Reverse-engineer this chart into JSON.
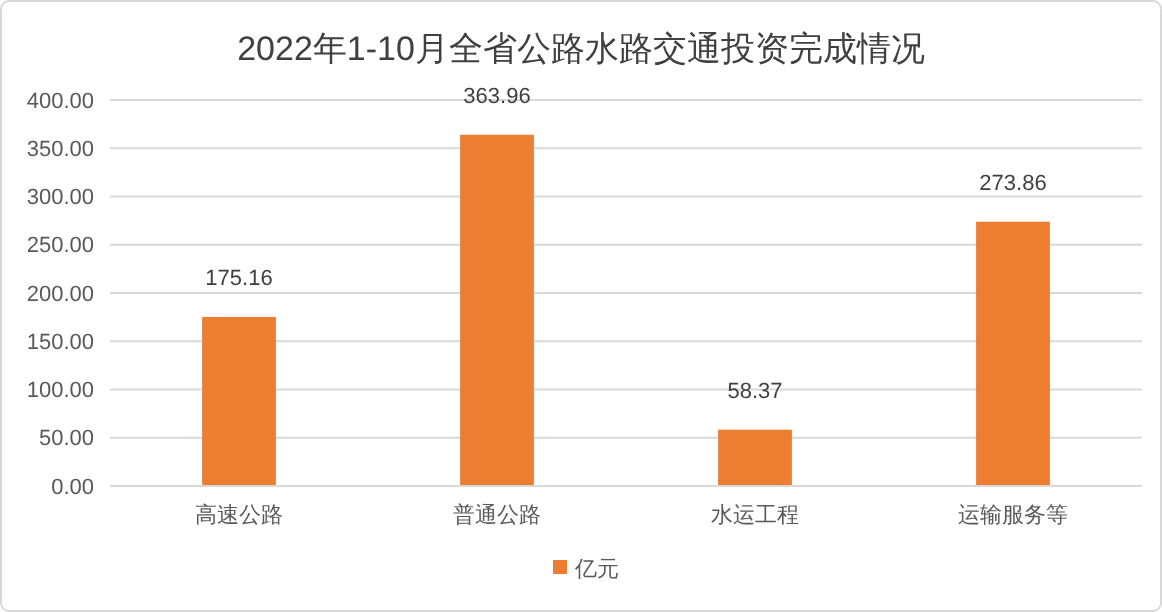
{
  "chart_data": {
    "type": "bar",
    "title": "2022年1-10月全省公路水路交通投资完成情况",
    "categories": [
      "高速公路",
      "普通公路",
      "水运工程",
      "运输服务等"
    ],
    "series": [
      {
        "name": "亿元",
        "color": "#ed7d31",
        "values": [
          175.16,
          363.96,
          58.37,
          273.86
        ]
      }
    ],
    "ylim": [
      0,
      400
    ],
    "yticks": [
      {
        "value": 0,
        "label": "0.00"
      },
      {
        "value": 50,
        "label": "50.00"
      },
      {
        "value": 100,
        "label": "100.00"
      },
      {
        "value": 150,
        "label": "150.00"
      },
      {
        "value": 200,
        "label": "200.00"
      },
      {
        "value": 250,
        "label": "250.00"
      },
      {
        "value": 300,
        "label": "300.00"
      },
      {
        "value": 350,
        "label": "350.00"
      },
      {
        "value": 400,
        "label": "400.00"
      }
    ],
    "grid": "y",
    "legend": "bottom",
    "data_labels": true
  }
}
